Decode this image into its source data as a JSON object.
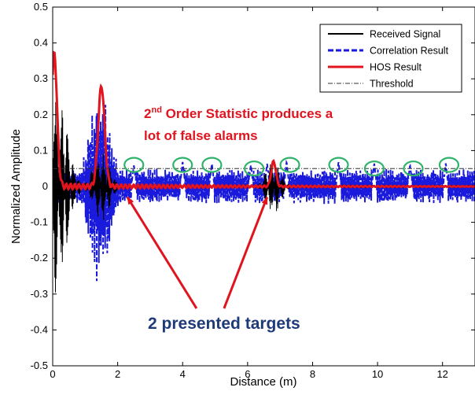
{
  "chart_data": {
    "type": "line",
    "title": "",
    "xlabel": "Distance (m)",
    "ylabel": "Normalized Amplitude",
    "xlim": [
      0,
      13
    ],
    "ylim": [
      -0.5,
      0.5
    ],
    "xticks": [
      0,
      2,
      4,
      6,
      8,
      10,
      12
    ],
    "yticks": [
      -0.5,
      -0.4,
      -0.3,
      -0.2,
      -0.1,
      0,
      0.1,
      0.2,
      0.3,
      0.4,
      0.5
    ],
    "grid": false,
    "legend_position": "top-right",
    "series": [
      {
        "name": "Received Signal",
        "color": "#000000",
        "style": "solid",
        "bursts": [
          {
            "center": 0.1,
            "width": 0.45,
            "amplitude": 0.3
          },
          {
            "center": 1.5,
            "width": 0.35,
            "amplitude": 0.1
          },
          {
            "center": 6.8,
            "width": 0.3,
            "amplitude": 0.08
          }
        ]
      },
      {
        "name": "Correlation Result",
        "color": "#1a1adc",
        "style": "dashed",
        "bursts": [
          {
            "center": 1.45,
            "width": 0.45,
            "amplitude": 0.28
          }
        ],
        "peaks": [
          {
            "x": 2.5,
            "y": 0.06
          },
          {
            "x": 4.0,
            "y": 0.07
          },
          {
            "x": 4.9,
            "y": 0.065
          },
          {
            "x": 6.1,
            "y": 0.06
          },
          {
            "x": 6.6,
            "y": 0.065
          },
          {
            "x": 7.2,
            "y": 0.07
          },
          {
            "x": 8.8,
            "y": 0.07
          },
          {
            "x": 9.9,
            "y": 0.065
          },
          {
            "x": 11.0,
            "y": 0.06
          },
          {
            "x": 12.1,
            "y": 0.065
          }
        ],
        "noise_amplitude": 0.055
      },
      {
        "name": "HOS Result",
        "color": "#e3141e",
        "style": "solid",
        "peaks": [
          {
            "x": 0.05,
            "y": 0.37
          },
          {
            "x": 1.5,
            "y": 0.28
          },
          {
            "x": 6.8,
            "y": 0.07
          }
        ]
      },
      {
        "name": "Threshold",
        "color": "#333333",
        "style": "dashdot",
        "y": 0.05
      }
    ],
    "false_alarm_markers": [
      {
        "x": 2.5,
        "y": 0.06
      },
      {
        "x": 4.0,
        "y": 0.06
      },
      {
        "x": 4.9,
        "y": 0.06
      },
      {
        "x": 6.2,
        "y": 0.05
      },
      {
        "x": 7.3,
        "y": 0.06
      },
      {
        "x": 8.8,
        "y": 0.06
      },
      {
        "x": 9.9,
        "y": 0.05
      },
      {
        "x": 11.1,
        "y": 0.05
      },
      {
        "x": 12.2,
        "y": 0.06
      }
    ],
    "marker_color": "#2fb36a",
    "annotations": {
      "statistic_line1_base": "2",
      "statistic_line1_sup": "nd",
      "statistic_line1_rest": " Order Statistic produces a",
      "statistic_line2": "lot of false alarms",
      "targets_label": "2 presented targets",
      "arrow_color": "#e0141e",
      "arrow_targets": [
        {
          "x": 2.3,
          "y": -0.03
        },
        {
          "x": 6.6,
          "y": -0.03
        }
      ],
      "arrow_origin": {
        "x": 4.5,
        "y": -0.34
      }
    }
  }
}
